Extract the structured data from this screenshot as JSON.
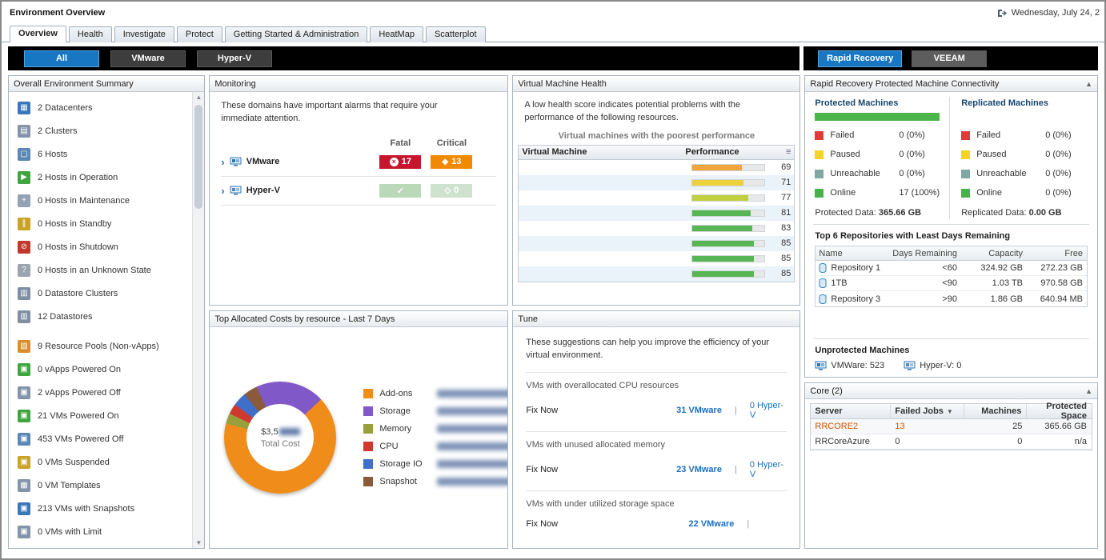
{
  "header": {
    "title": "Environment Overview",
    "datetime": "Wednesday, July 24, 2"
  },
  "tabs": [
    {
      "label": "Overview"
    },
    {
      "label": "Health"
    },
    {
      "label": "Investigate"
    },
    {
      "label": "Protect"
    },
    {
      "label": "Getting Started & Administration"
    },
    {
      "label": "HeatMap"
    },
    {
      "label": "Scatterplot"
    }
  ],
  "toolbar": {
    "left": [
      {
        "label": "All"
      },
      {
        "label": "VMware"
      },
      {
        "label": "Hyper-V"
      }
    ],
    "right": [
      {
        "label": "Rapid Recovery"
      },
      {
        "label": "VEEAM"
      }
    ]
  },
  "summary": {
    "title": "Overall Environment Summary",
    "items": [
      {
        "icon": "datacenters-icon",
        "label": "2 Datacenters"
      },
      {
        "icon": "clusters-icon",
        "label": "2 Clusters"
      },
      {
        "icon": "hosts-icon",
        "label": "6 Hosts"
      },
      {
        "icon": "hosts-operation-icon",
        "label": "2 Hosts in Operation"
      },
      {
        "icon": "hosts-maintenance-icon",
        "label": "0 Hosts in Maintenance"
      },
      {
        "icon": "hosts-standby-icon",
        "label": "0 Hosts in Standby"
      },
      {
        "icon": "hosts-shutdown-icon",
        "label": "0 Hosts in Shutdown"
      },
      {
        "icon": "hosts-unknown-icon",
        "label": "0 Hosts in an Unknown State"
      },
      {
        "icon": "datastore-clusters-icon",
        "label": "0 Datastore Clusters"
      },
      {
        "icon": "datastores-icon",
        "label": "12 Datastores"
      },
      {
        "icon": "resource-pools-icon",
        "label": "9 Resource Pools (Non-vApps)"
      },
      {
        "icon": "vapps-powered-on-icon",
        "label": "0 vApps Powered On"
      },
      {
        "icon": "vapps-powered-off-icon",
        "label": "2 vApps Powered Off"
      },
      {
        "icon": "vms-powered-on-icon",
        "label": "21 VMs Powered On"
      },
      {
        "icon": "vms-powered-off-icon",
        "label": "453 VMs Powered Off"
      },
      {
        "icon": "vms-suspended-icon",
        "label": "0 VMs Suspended"
      },
      {
        "icon": "vm-templates-icon",
        "label": "0 VM Templates"
      },
      {
        "icon": "vms-snapshots-icon",
        "label": "213 VMs with Snapshots"
      },
      {
        "icon": "vms-limit-icon",
        "label": "0 VMs with Limit"
      }
    ]
  },
  "monitoring": {
    "title": "Monitoring",
    "message": "These domains have important alarms that require your immediate attention.",
    "columns": {
      "fatal": "Fatal",
      "critical": "Critical"
    },
    "rows": [
      {
        "name": "VMware",
        "fatal": "17",
        "critical": "13"
      },
      {
        "name": "Hyper-V",
        "fatal": "",
        "critical": "0"
      }
    ]
  },
  "costs": {
    "title": "Top Allocated Costs by resource - Last 7 Days",
    "center_prefix": "$3,5",
    "center_label": "Total Cost",
    "legend": [
      {
        "label": "Add-ons",
        "color": "#ef8c1a"
      },
      {
        "label": "Storage",
        "color": "#8058c8"
      },
      {
        "label": "Memory",
        "color": "#97a03a"
      },
      {
        "label": "CPU",
        "color": "#cf3a30"
      },
      {
        "label": "Storage IO",
        "color": "#3f6fc8"
      },
      {
        "label": "Snapshot",
        "color": "#8a5a3a"
      }
    ],
    "slices": [
      {
        "color": "#8058c8",
        "pct": 20
      },
      {
        "color": "#ef8c1a",
        "pct": 66
      },
      {
        "color": "#97a03a",
        "pct": 3
      },
      {
        "color": "#cf3a30",
        "pct": 3
      },
      {
        "color": "#3f6fc8",
        "pct": 4
      },
      {
        "color": "#8a5a3a",
        "pct": 4
      }
    ]
  },
  "vm_health": {
    "title": "Virtual Machine Health",
    "message": "A low health score indicates potential problems with the performance of the following resources.",
    "subtitle": "Virtual machines with the poorest performance",
    "columns": {
      "name": "Virtual Machine",
      "performance": "Performance"
    },
    "rows": [
      {
        "performance": 69,
        "bar_color": "#f0a43c"
      },
      {
        "performance": 71,
        "bar_color": "#ecd23a"
      },
      {
        "performance": 77,
        "bar_color": "#c2cf3e"
      },
      {
        "performance": 81,
        "bar_color": "#58b554"
      },
      {
        "performance": 83,
        "bar_color": "#58b554"
      },
      {
        "performance": 85,
        "bar_color": "#58b554"
      },
      {
        "performance": 85,
        "bar_color": "#58b554"
      },
      {
        "performance": 85,
        "bar_color": "#58b554"
      }
    ]
  },
  "tune": {
    "title": "Tune",
    "message": "These suggestions can help you improve the efficiency of your virtual environment.",
    "sections": [
      {
        "heading": "VMs with overallocated CPU resources",
        "action": "Fix Now",
        "vmware": "31 VMware",
        "hyperv": "0 Hyper-V"
      },
      {
        "heading": "VMs with unused allocated memory",
        "action": "Fix Now",
        "vmware": "23 VMware",
        "hyperv": "0 Hyper-V"
      },
      {
        "heading": "VMs with under utilized storage space",
        "action": "Fix Now",
        "vmware": "22 VMware",
        "hyperv": ""
      }
    ]
  },
  "rapid_recovery": {
    "title": "Rapid Recovery Protected Machine Connectivity",
    "protected": {
      "heading": "Protected Machines",
      "statuses": [
        {
          "label": "Failed",
          "value": "0 (0%)",
          "color": "#e03a3a"
        },
        {
          "label": "Paused",
          "value": "0 (0%)",
          "color": "#f5d327"
        },
        {
          "label": "Unreachable",
          "value": "0 (0%)",
          "color": "#7fa8a2"
        },
        {
          "label": "Online",
          "value": "17 (100%)",
          "color": "#47b14b"
        }
      ],
      "data_label": "Protected Data:",
      "data_value": "365.66 GB"
    },
    "replicated": {
      "heading": "Replicated Machines",
      "statuses": [
        {
          "label": "Failed",
          "value": "0 (0%)",
          "color": "#e03a3a"
        },
        {
          "label": "Paused",
          "value": "0 (0%)",
          "color": "#f5d327"
        },
        {
          "label": "Unreachable",
          "value": "0 (0%)",
          "color": "#7fa8a2"
        },
        {
          "label": "Online",
          "value": "0 (0%)",
          "color": "#47b14b"
        }
      ],
      "data_label": "Replicated Data:",
      "data_value": "0.00 GB"
    },
    "repositories": {
      "heading": "Top 6 Repositories with Least Days Remaining",
      "columns": [
        "Name",
        "Days Remaining",
        "Capacity",
        "Free"
      ],
      "rows": [
        {
          "name": "Repository 1",
          "days": "<60",
          "capacity": "324.92 GB",
          "free": "272.23 GB"
        },
        {
          "name": "1TB",
          "days": "<90",
          "capacity": "1.03 TB",
          "free": "970.58 GB"
        },
        {
          "name": "Repository 3",
          "days": ">90",
          "capacity": "1.86 GB",
          "free": "640.94 MB"
        }
      ]
    },
    "unprotected": {
      "heading": "Unprotected Machines",
      "vmware": "VMWare: 523",
      "hyperv": "Hyper-V: 0"
    }
  },
  "core": {
    "title": "Core (2)",
    "columns": [
      "Server",
      "Failed Jobs",
      "Machines",
      "Protected Space"
    ],
    "rows": [
      {
        "server": "RRCORE2",
        "failed_jobs": "13",
        "machines": "25",
        "protected_space": "365.66 GB"
      },
      {
        "server": "RRCoreAzure",
        "failed_jobs": "0",
        "machines": "0",
        "protected_space": "n/a"
      }
    ]
  }
}
